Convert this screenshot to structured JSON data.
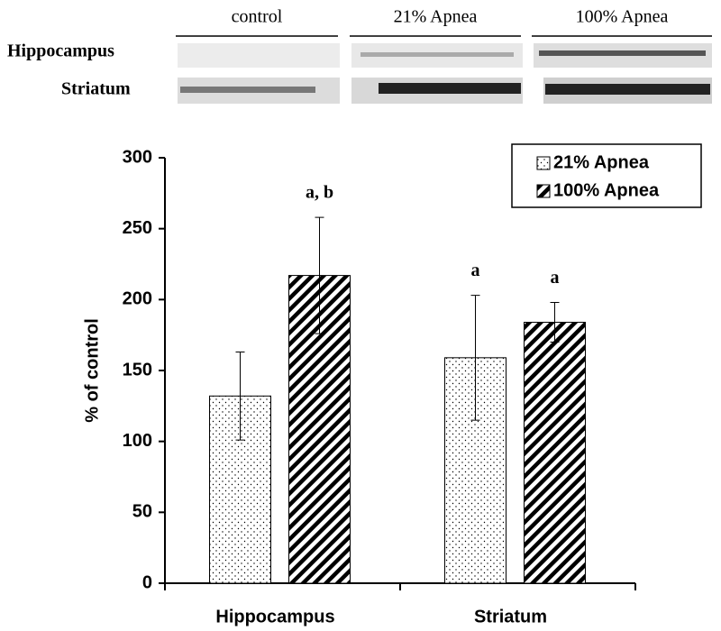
{
  "blot": {
    "columns": [
      "control",
      "21% Apnea",
      "100% Apnea"
    ],
    "rows": [
      "Hippocampus",
      "Striatum"
    ]
  },
  "chart_data": {
    "type": "bar",
    "categories": [
      "Hippocampus",
      "Striatum"
    ],
    "ylabel": "% of control",
    "ylim": [
      0,
      300
    ],
    "yticks": [
      0,
      50,
      100,
      150,
      200,
      250,
      300
    ],
    "legend": "upper right",
    "series": [
      {
        "name": "21% Apnea",
        "color": "#000000",
        "pattern": "dots",
        "values": [
          132,
          159
        ],
        "errors": [
          31,
          44
        ],
        "annotations": [
          null,
          "a"
        ]
      },
      {
        "name": "100% Apnea",
        "color": "#000000",
        "pattern": "stripes",
        "values": [
          217,
          184
        ],
        "errors": [
          41,
          14
        ],
        "annotations": [
          "a, b",
          "a"
        ]
      }
    ]
  }
}
